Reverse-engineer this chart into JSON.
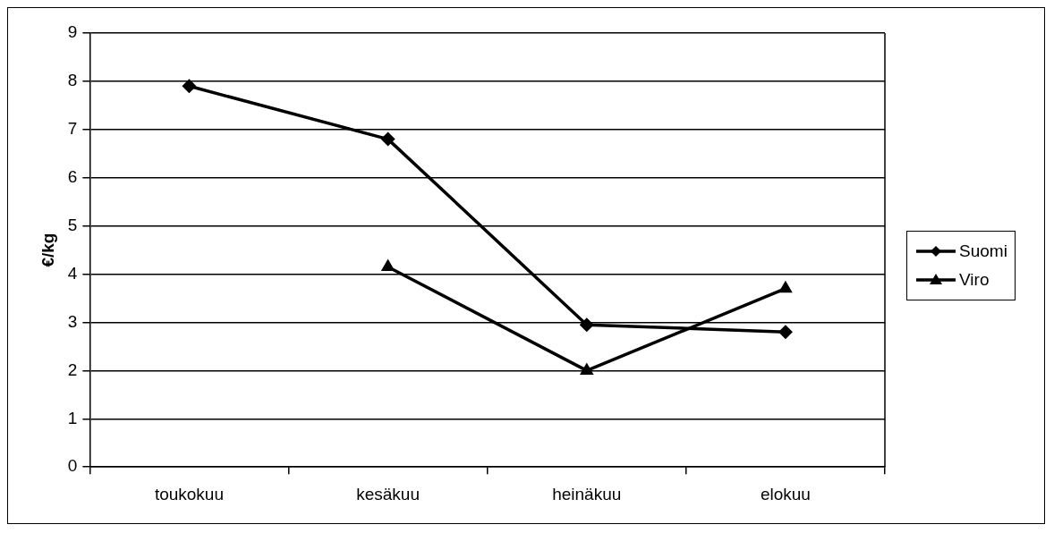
{
  "chart_data": {
    "type": "line",
    "ylabel": "€/kg",
    "categories": [
      "toukokuu",
      "kesäkuu",
      "heinäkuu",
      "elokuu"
    ],
    "series": [
      {
        "name": "Suomi",
        "color": "#000000",
        "marker": "diamond",
        "values": [
          7.9,
          6.8,
          2.95,
          2.8
        ]
      },
      {
        "name": "Viro",
        "color": "#000000",
        "marker": "triangle",
        "values": [
          null,
          4.15,
          2.0,
          3.7
        ]
      }
    ],
    "ylim": [
      0,
      9
    ],
    "yticks": [
      0,
      1,
      2,
      3,
      4,
      5,
      6,
      7,
      8,
      9
    ],
    "grid": "y",
    "legend": "right",
    "line_style": "solid"
  }
}
